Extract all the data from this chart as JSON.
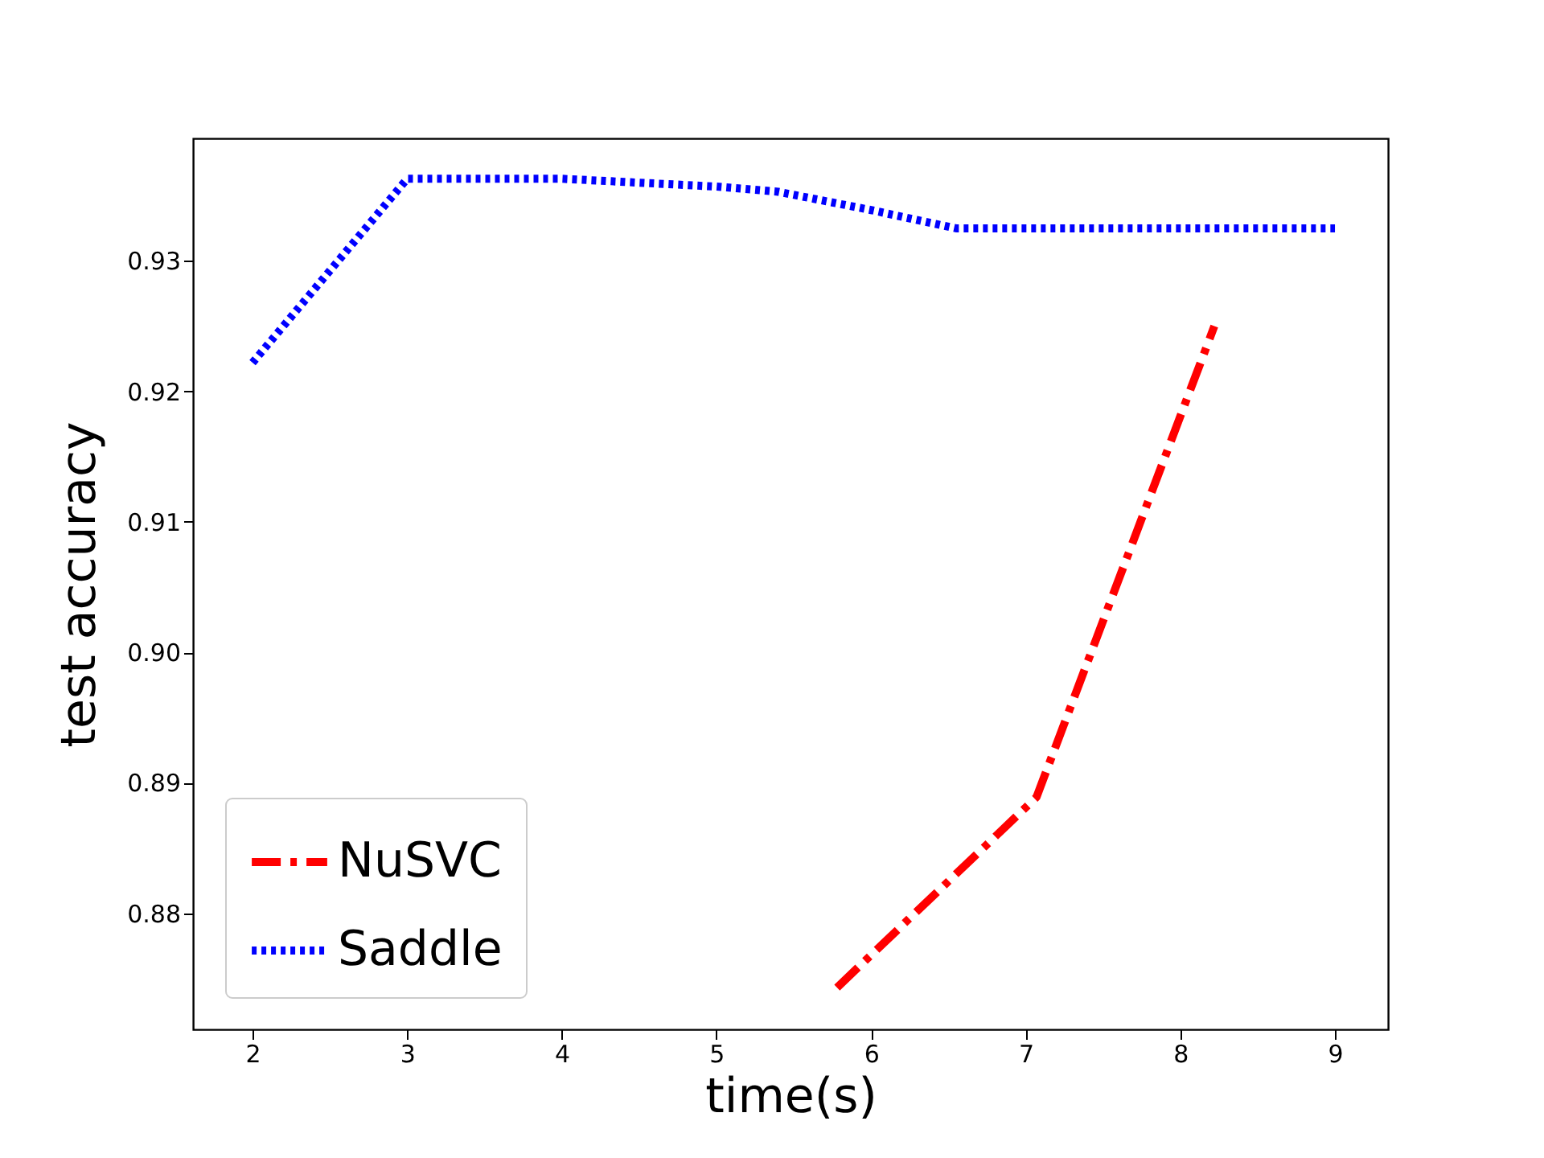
{
  "chart_data": {
    "type": "line",
    "xlabel": "time(s)",
    "ylabel": "test accuracy",
    "xlim": [
      1.615,
      9.343
    ],
    "ylim": [
      0.8711,
      0.9394
    ],
    "xticks": [
      2,
      3,
      4,
      5,
      6,
      7,
      8,
      9
    ],
    "yticks": [
      {
        "value": 0.88,
        "label": "0.88"
      },
      {
        "value": 0.89,
        "label": "0.89"
      },
      {
        "value": 0.9,
        "label": "0.90"
      },
      {
        "value": 0.91,
        "label": "0.91"
      },
      {
        "value": 0.92,
        "label": "0.92"
      },
      {
        "value": 0.93,
        "label": "0.93"
      }
    ],
    "grid": false,
    "legend": "bottom left",
    "series": [
      {
        "name": "NuSVC",
        "color": "#ff0000",
        "line_style": "dashdot",
        "x": [
          5.78,
          7.07,
          8.22
        ],
        "values": [
          0.8743,
          0.8889,
          0.925
        ]
      },
      {
        "name": "Saddle",
        "color": "#0000ff",
        "line_style": "dotted",
        "x": [
          2,
          3,
          4,
          4.5,
          5,
          5.4,
          6,
          6.55,
          9
        ],
        "values": [
          0.9222,
          0.9363,
          0.9363,
          0.936,
          0.9357,
          0.9353,
          0.9339,
          0.9325,
          0.9325
        ]
      }
    ]
  }
}
